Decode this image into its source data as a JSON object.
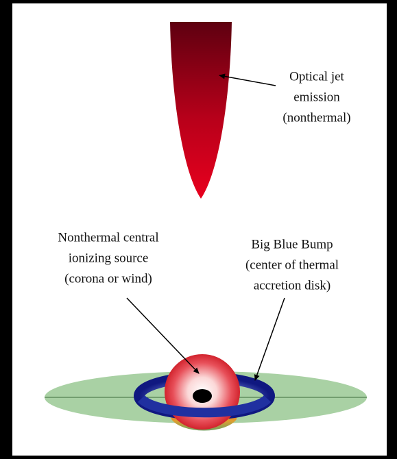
{
  "labels": [
    {
      "lines": [
        "Optical jet",
        "emission",
        "(nonthermal)"
      ]
    },
    {
      "lines": [
        "Nonthermal central",
        "ionizing source",
        "(corona or wind)"
      ]
    },
    {
      "lines": [
        "Big Blue Bump",
        "(center of thermal",
        "accretion disk)"
      ]
    }
  ]
}
